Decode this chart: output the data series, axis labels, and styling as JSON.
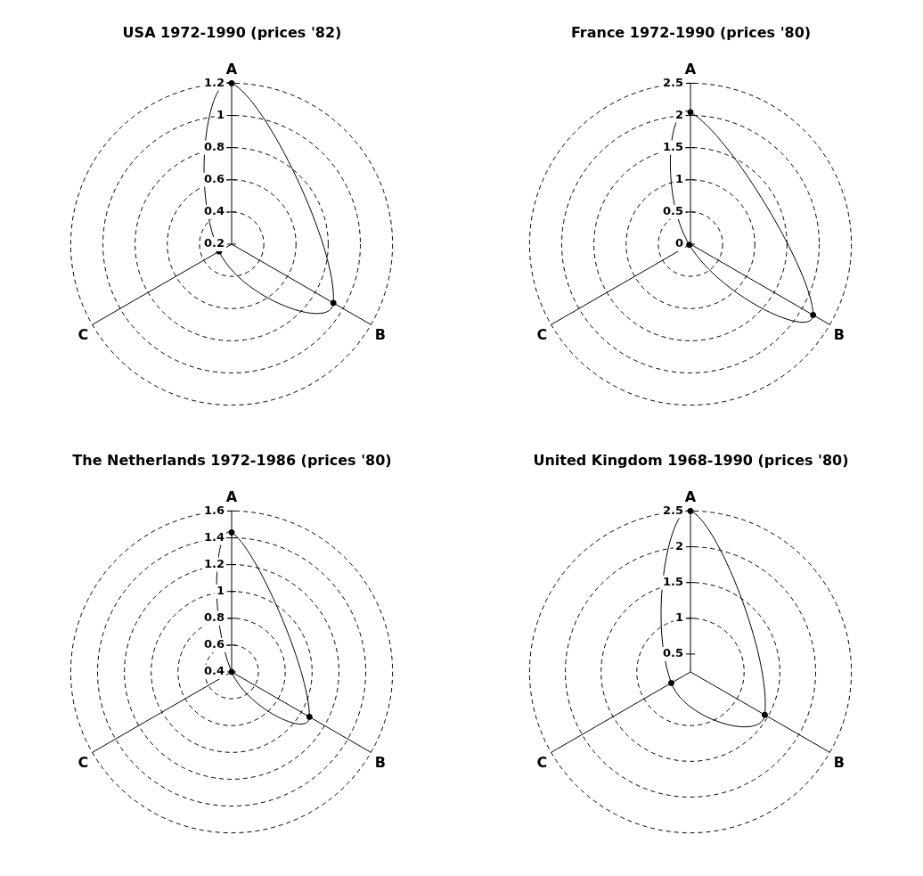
{
  "chart_data": [
    {
      "type": "radar",
      "title": "USA 1972-1990 (prices '82)",
      "categories": [
        "A",
        "B",
        "C"
      ],
      "series": [
        {
          "color": "#000000",
          "values": [
            1.2,
            0.93,
            0.29
          ]
        }
      ],
      "ylim": [
        0.2,
        1.2
      ],
      "yticks": [
        0.2,
        0.4,
        0.6,
        0.8,
        1,
        1.2
      ],
      "grid": true,
      "marker": "circle",
      "line_style": "solid"
    },
    {
      "type": "radar",
      "title": "France 1972-1990 (prices '80)",
      "categories": [
        "A",
        "B",
        "C"
      ],
      "series": [
        {
          "color": "#000000",
          "values": [
            2.05,
            2.2,
            0.02
          ]
        }
      ],
      "ylim": [
        0,
        2.5
      ],
      "yticks": [
        0,
        0.5,
        1,
        1.5,
        2,
        2.5
      ],
      "grid": true,
      "marker": "circle",
      "line_style": "solid"
    },
    {
      "type": "radar",
      "title": "The Netherlands 1972-1986 (prices '80)",
      "categories": [
        "A",
        "B",
        "C"
      ],
      "series": [
        {
          "color": "#000000",
          "values": [
            1.44,
            1.07,
            0.4
          ]
        }
      ],
      "ylim": [
        0.4,
        1.6
      ],
      "yticks": [
        0.4,
        0.6,
        0.8,
        1,
        1.2,
        1.4,
        1.6
      ],
      "grid": true,
      "marker": "circle",
      "line_style": "solid"
    },
    {
      "type": "radar",
      "title": "United Kingdom 1968-1990 (prices '80)",
      "categories": [
        "A",
        "B",
        "C"
      ],
      "series": [
        {
          "color": "#000000",
          "values": [
            2.5,
            1.45,
            0.56
          ]
        }
      ],
      "ylim": [
        0.25,
        2.5
      ],
      "yticks": [
        0.5,
        1,
        1.5,
        2,
        2.5
      ],
      "grid": true,
      "marker": "circle",
      "line_style": "solid"
    }
  ]
}
